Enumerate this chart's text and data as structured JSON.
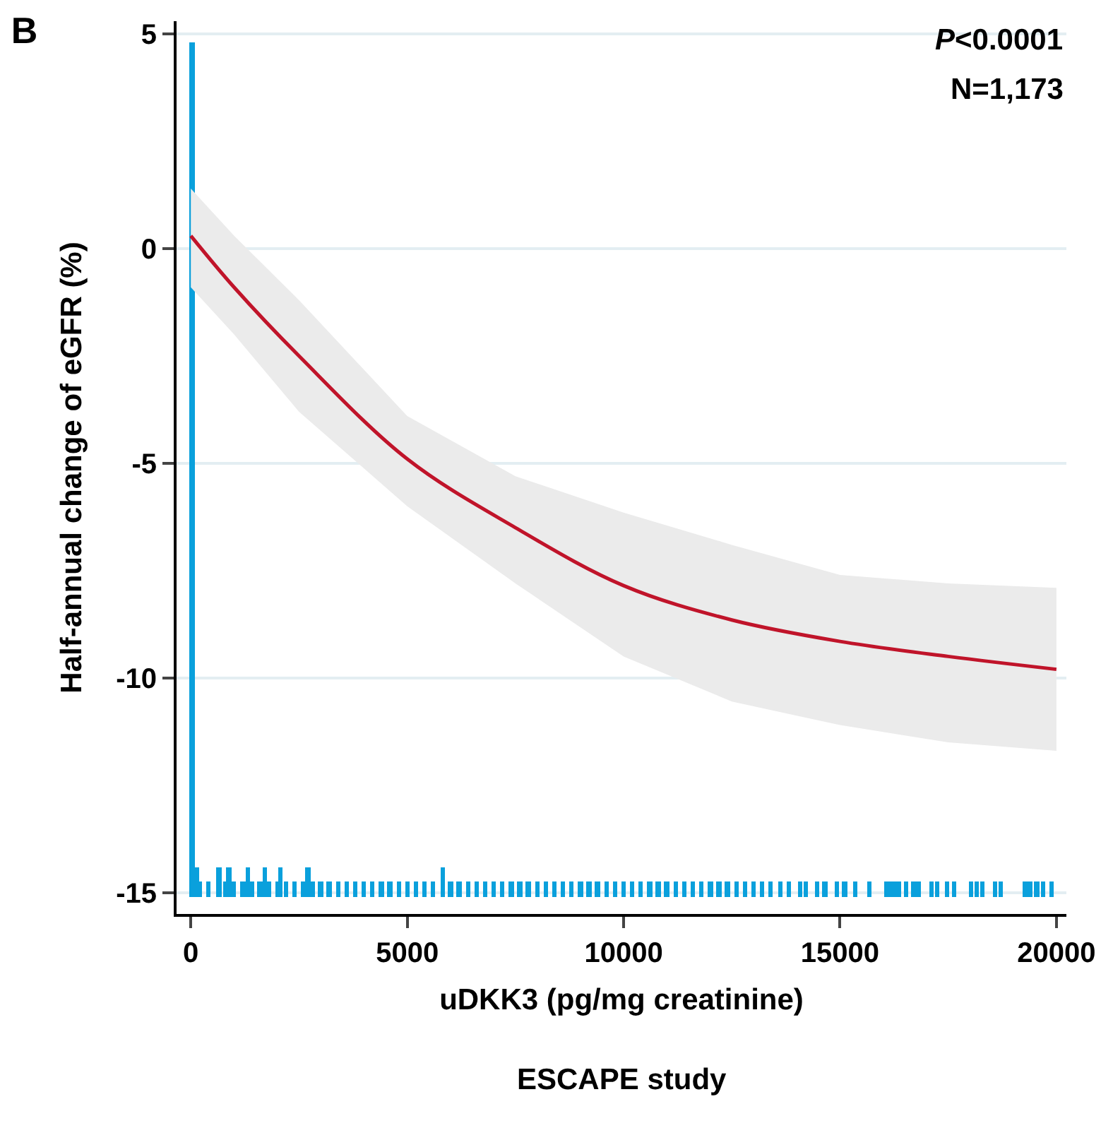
{
  "chart_data": {
    "type": "line",
    "title": "B",
    "xlabel": "uDKK3 (pg/mg creatinine)",
    "ylabel": "Half-annual change of eGFR (%)",
    "xlim": [
      -330,
      20230
    ],
    "ylim": [
      -15.5,
      5.3
    ],
    "xticks": [
      0,
      5000,
      10000,
      15000,
      20000
    ],
    "yticks": [
      5,
      0,
      -5,
      -10,
      -15
    ],
    "grid": "y",
    "annotations": [
      "P<0.0001",
      "N=1,173",
      "ESCAPE study"
    ],
    "series": [
      {
        "color": "#c0142a",
        "x": [
          0,
          1000,
          2500,
          5000,
          7500,
          10000,
          12500,
          15000,
          17500,
          20000
        ],
        "values": [
          0.3,
          -0.9,
          -2.5,
          -4.9,
          -6.5,
          -7.85,
          -8.65,
          -9.15,
          -9.5,
          -9.8
        ],
        "upper": [
          1.4,
          0.3,
          -1.2,
          -3.9,
          -5.3,
          -6.15,
          -6.9,
          -7.6,
          -7.8,
          -7.9
        ],
        "lower": [
          -0.9,
          -2.0,
          -3.8,
          -6.0,
          -7.8,
          -9.5,
          -10.55,
          -11.1,
          -11.5,
          -11.7
        ]
      },
      {
        "type": "bar",
        "color": "#0aa0dc",
        "x": [
          30,
          130,
          200,
          400,
          650,
          800,
          880,
          1000,
          1200,
          1310,
          1400,
          1600,
          1700,
          1800,
          2000,
          2060,
          2200,
          2400,
          2600,
          2710,
          2800,
          3000,
          3200,
          3400,
          3600,
          3800,
          4000,
          4200,
          4400,
          4600,
          4800,
          5000,
          5200,
          5400,
          5600,
          5820,
          6000,
          6200,
          6400,
          6600,
          6800,
          7000,
          7200,
          7400,
          7600,
          7800,
          8000,
          8200,
          8400,
          8600,
          8800,
          9000,
          9200,
          9400,
          9600,
          9800,
          10000,
          10200,
          10400,
          10600,
          10800,
          11000,
          11200,
          11400,
          11600,
          11800,
          12000,
          12200,
          12400,
          12600,
          12800,
          13000,
          13200,
          13400,
          13620,
          13820,
          14080,
          14210,
          14480,
          14650,
          14920,
          15110,
          15350,
          15680,
          16080,
          16220,
          16350,
          16520,
          16710,
          16820,
          17110,
          17250,
          17480,
          17640,
          18020,
          18150,
          18280,
          18580,
          18710,
          19280,
          19380,
          19550,
          19690,
          19890
        ],
        "values": [
          19.9,
          0.7,
          0.35,
          0.35,
          0.7,
          0.35,
          0.7,
          0.35,
          0.35,
          0.7,
          0.35,
          0.35,
          0.7,
          0.35,
          0.35,
          0.7,
          0.35,
          0.35,
          0.35,
          0.7,
          0.35,
          0.35,
          0.35,
          0.35,
          0.35,
          0.35,
          0.35,
          0.35,
          0.35,
          0.35,
          0.35,
          0.35,
          0.35,
          0.35,
          0.35,
          0.7,
          0.35,
          0.35,
          0.35,
          0.35,
          0.35,
          0.35,
          0.35,
          0.35,
          0.35,
          0.35,
          0.35,
          0.35,
          0.35,
          0.35,
          0.35,
          0.35,
          0.35,
          0.35,
          0.35,
          0.35,
          0.35,
          0.35,
          0.35,
          0.35,
          0.35,
          0.35,
          0.35,
          0.35,
          0.35,
          0.35,
          0.35,
          0.35,
          0.35,
          0.35,
          0.35,
          0.35,
          0.35,
          0.35,
          0.35,
          0.35,
          0.35,
          0.35,
          0.35,
          0.35,
          0.35,
          0.35,
          0.35,
          0.35,
          0.35,
          0.35,
          0.35,
          0.35,
          0.35,
          0.35,
          0.35,
          0.35,
          0.35,
          0.35,
          0.35,
          0.35,
          0.35,
          0.35,
          0.35,
          0.35,
          0.35,
          0.35,
          0.35,
          0.35
        ],
        "base": [
          -15.1,
          -15.1,
          -15.1,
          -15.1,
          -15.1,
          -15.1,
          -15.1,
          -15.1,
          -15.1,
          -15.1,
          -15.1,
          -15.1,
          -15.1,
          -15.1,
          -15.1,
          -15.1,
          -15.1,
          -15.1,
          -15.1,
          -15.1,
          -15.1,
          -15.1,
          -15.1,
          -15.1,
          -15.1,
          -15.1,
          -15.1,
          -15.1,
          -15.1,
          -15.1,
          -15.1,
          -15.1,
          -15.1,
          -15.1,
          -15.1,
          -15.1,
          -15.1,
          -15.1,
          -15.1,
          -15.1,
          -15.1,
          -15.1,
          -15.1,
          -15.1,
          -15.1,
          -15.1,
          -15.1,
          -15.1,
          -15.1,
          -15.1,
          -15.1,
          -15.1,
          -15.1,
          -15.1,
          -15.1,
          -15.1,
          -15.1,
          -15.1,
          -15.1,
          -15.1,
          -15.1,
          -15.1,
          -15.1,
          -15.1,
          -15.1,
          -15.1,
          -15.1,
          -15.1,
          -15.1,
          -15.1,
          -15.1,
          -15.1,
          -15.1,
          -15.1,
          -15.1,
          -15.1,
          -15.1,
          -15.1,
          -15.1,
          -15.1,
          -15.1,
          -15.1,
          -15.1,
          -15.1,
          -15.1,
          -15.1,
          -15.1,
          -15.1,
          -15.1,
          -15.1,
          -15.1,
          -15.1,
          -15.1,
          -15.1,
          -15.1,
          -15.1,
          -15.1,
          -15.1,
          -15.1,
          -15.1,
          -15.1,
          -15.1,
          -15.1,
          -15.1
        ]
      }
    ]
  }
}
